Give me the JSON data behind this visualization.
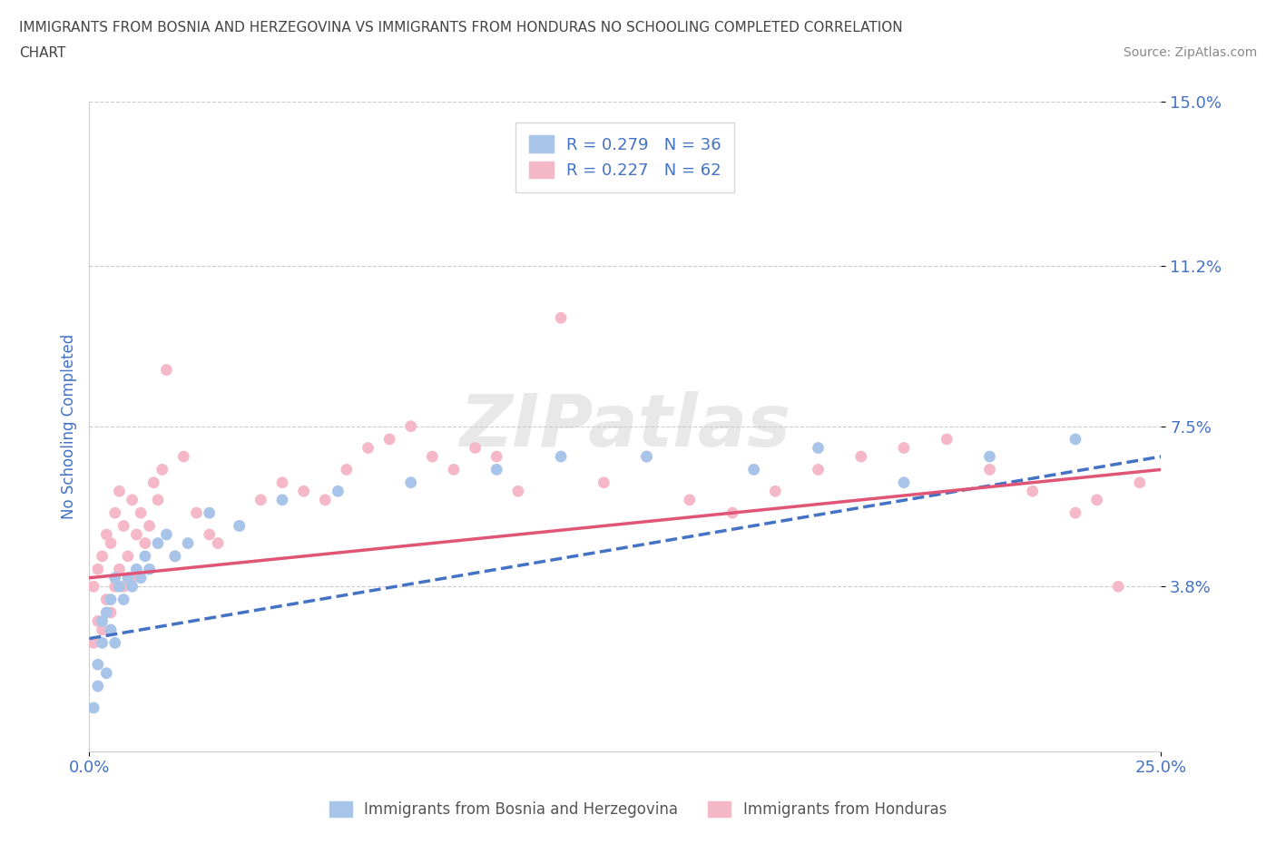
{
  "title_line1": "IMMIGRANTS FROM BOSNIA AND HERZEGOVINA VS IMMIGRANTS FROM HONDURAS NO SCHOOLING COMPLETED CORRELATION",
  "title_line2": "CHART",
  "source_text": "Source: ZipAtlas.com",
  "ylabel": "No Schooling Completed",
  "xlim": [
    0.0,
    0.25
  ],
  "ylim": [
    0.0,
    0.15
  ],
  "yticks": [
    0.038,
    0.075,
    0.112,
    0.15
  ],
  "ytick_labels": [
    "3.8%",
    "7.5%",
    "11.2%",
    "15.0%"
  ],
  "xtick_labels": [
    "0.0%",
    "25.0%"
  ],
  "xticks": [
    0.0,
    0.25
  ],
  "series1_label": "Immigrants from Bosnia and Herzegovina",
  "series2_label": "Immigrants from Honduras",
  "series1_color": "#a8c4e8",
  "series2_color": "#f5b8c8",
  "series1_R": 0.279,
  "series1_N": 36,
  "series2_R": 0.227,
  "series2_N": 62,
  "series1_line_color": "#4472c4",
  "series2_line_color": "#e05575",
  "watermark": "ZIPatlas",
  "series1_x": [
    0.001,
    0.002,
    0.002,
    0.003,
    0.003,
    0.004,
    0.004,
    0.005,
    0.005,
    0.006,
    0.006,
    0.007,
    0.008,
    0.009,
    0.01,
    0.011,
    0.012,
    0.013,
    0.014,
    0.016,
    0.018,
    0.02,
    0.023,
    0.028,
    0.035,
    0.045,
    0.058,
    0.075,
    0.095,
    0.11,
    0.13,
    0.155,
    0.17,
    0.19,
    0.21,
    0.23
  ],
  "series1_y": [
    0.01,
    0.015,
    0.02,
    0.025,
    0.03,
    0.018,
    0.032,
    0.028,
    0.035,
    0.025,
    0.04,
    0.038,
    0.035,
    0.04,
    0.038,
    0.042,
    0.04,
    0.045,
    0.042,
    0.048,
    0.05,
    0.045,
    0.048,
    0.055,
    0.052,
    0.058,
    0.06,
    0.062,
    0.065,
    0.068,
    0.068,
    0.065,
    0.07,
    0.062,
    0.068,
    0.072
  ],
  "series2_x": [
    0.001,
    0.001,
    0.002,
    0.002,
    0.003,
    0.003,
    0.004,
    0.004,
    0.005,
    0.005,
    0.006,
    0.006,
    0.007,
    0.007,
    0.008,
    0.008,
    0.009,
    0.01,
    0.01,
    0.011,
    0.012,
    0.013,
    0.014,
    0.015,
    0.016,
    0.017,
    0.018,
    0.02,
    0.022,
    0.025,
    0.028,
    0.03,
    0.035,
    0.04,
    0.045,
    0.05,
    0.055,
    0.06,
    0.065,
    0.07,
    0.075,
    0.08,
    0.085,
    0.09,
    0.095,
    0.1,
    0.11,
    0.12,
    0.13,
    0.14,
    0.15,
    0.16,
    0.17,
    0.18,
    0.19,
    0.2,
    0.21,
    0.22,
    0.23,
    0.235,
    0.24,
    0.245
  ],
  "series2_y": [
    0.025,
    0.038,
    0.03,
    0.042,
    0.028,
    0.045,
    0.035,
    0.05,
    0.032,
    0.048,
    0.038,
    0.055,
    0.042,
    0.06,
    0.038,
    0.052,
    0.045,
    0.04,
    0.058,
    0.05,
    0.055,
    0.048,
    0.052,
    0.062,
    0.058,
    0.065,
    0.088,
    0.045,
    0.068,
    0.055,
    0.05,
    0.048,
    0.052,
    0.058,
    0.062,
    0.06,
    0.058,
    0.065,
    0.07,
    0.072,
    0.075,
    0.068,
    0.065,
    0.07,
    0.068,
    0.06,
    0.1,
    0.062,
    0.068,
    0.058,
    0.055,
    0.06,
    0.065,
    0.068,
    0.07,
    0.072,
    0.065,
    0.06,
    0.055,
    0.058,
    0.038,
    0.062
  ],
  "series1_trend_x0": 0.0,
  "series1_trend_x1": 0.25,
  "series1_trend_y0": 0.026,
  "series1_trend_y1": 0.068,
  "series2_trend_x0": 0.0,
  "series2_trend_x1": 0.25,
  "series2_trend_y0": 0.04,
  "series2_trend_y1": 0.065,
  "background_color": "#ffffff",
  "grid_color": "#cccccc",
  "title_color": "#444444",
  "axis_label_color": "#4472c4",
  "tick_label_color": "#4472c4"
}
